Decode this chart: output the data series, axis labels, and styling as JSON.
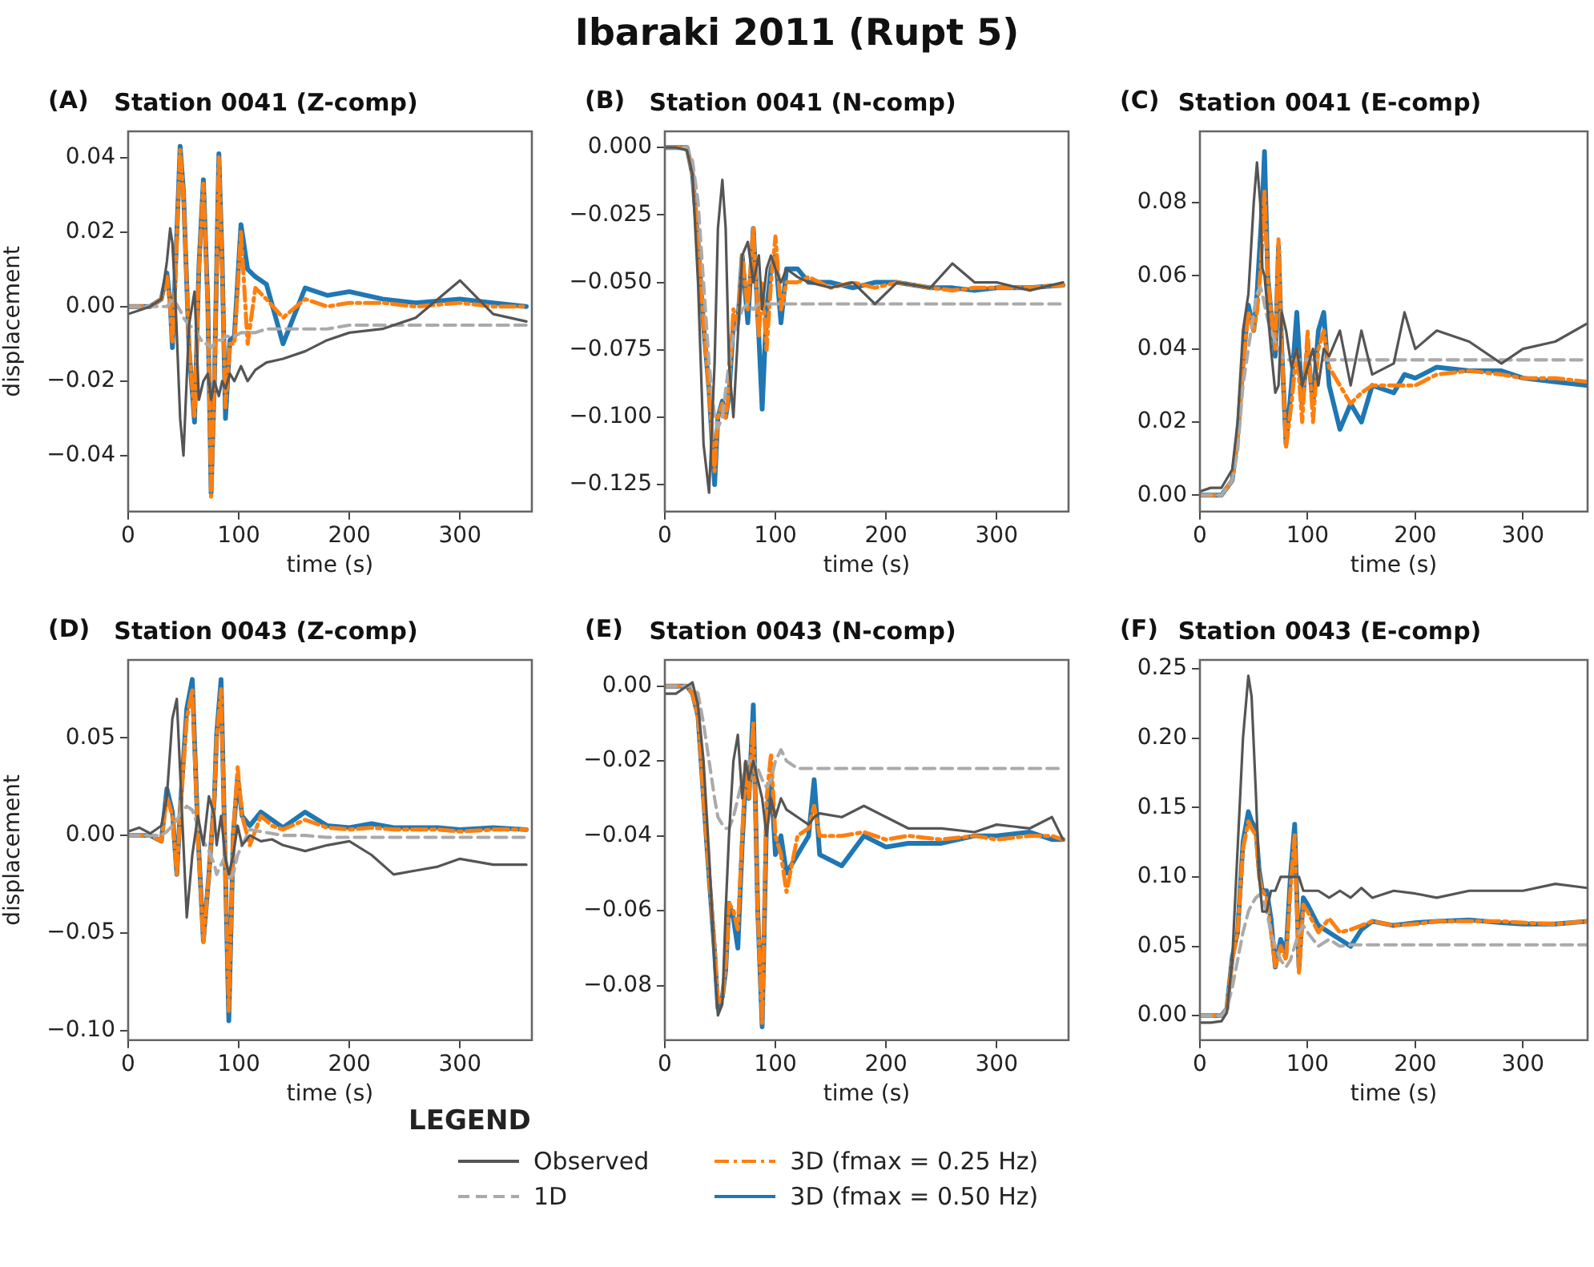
{
  "chart_data": [
    {
      "type": "line",
      "title": "Station 0041 (Z-comp)",
      "xlabel": "time (s)",
      "ylabel": "displacement",
      "annotations": [
        "Ibaraki 2011 (Rupt 5)",
        "(A)"
      ],
      "legend": "bottom",
      "legend_title": "LEGEND",
      "marker": "none",
      "x": [
        0,
        10,
        20,
        30,
        35,
        38,
        40,
        43,
        47,
        50,
        55,
        60,
        64,
        68,
        72,
        75,
        78,
        82,
        85,
        88,
        92,
        96,
        102,
        108,
        115,
        125,
        140,
        160,
        180,
        200,
        230,
        260,
        300,
        330,
        360
      ],
      "xlim": [
        0,
        365
      ],
      "xticks": [
        0,
        100,
        200,
        300
      ],
      "ylim": [
        -0.055,
        0.047
      ],
      "yticks": [
        {
          "value": -0.04,
          "label": "−0.04"
        },
        {
          "value": -0.02,
          "label": "−0.02"
        },
        {
          "value": 0,
          "label": "0.00"
        },
        {
          "value": 0.02,
          "label": "0.02"
        },
        {
          "value": 0.04,
          "label": "0.04"
        }
      ],
      "series": [
        {
          "name": "Observed",
          "color": "#555555",
          "line_style": "solid",
          "values": [
            -0.002,
            -0.001,
            0,
            0.002,
            0.012,
            0.021,
            0.017,
            0,
            -0.03,
            -0.04,
            -0.005,
            0.004,
            -0.025,
            -0.02,
            -0.018,
            -0.025,
            -0.02,
            -0.024,
            -0.02,
            -0.022,
            -0.018,
            -0.02,
            -0.016,
            -0.02,
            -0.017,
            -0.015,
            -0.014,
            -0.012,
            -0.009,
            -0.007,
            -0.006,
            -0.003,
            0.007,
            -0.002,
            -0.004
          ]
        },
        {
          "name": "1D",
          "color": "#aaaaaa",
          "line_style": "dashed",
          "values": [
            0,
            0,
            0,
            0,
            0,
            0.001,
            0.002,
            0.001,
            -0.001,
            -0.003,
            -0.005,
            -0.006,
            -0.008,
            -0.01,
            -0.01,
            -0.011,
            -0.01,
            -0.009,
            -0.009,
            -0.008,
            -0.008,
            -0.008,
            -0.007,
            -0.007,
            -0.007,
            -0.006,
            -0.006,
            -0.006,
            -0.006,
            -0.005,
            -0.005,
            -0.005,
            -0.005,
            -0.005,
            -0.005
          ]
        },
        {
          "name": "3D (fmax = 0.25 Hz)",
          "color": "#ff7f0e",
          "line_style": "dashdot",
          "values": [
            0,
            0,
            0,
            0.002,
            0.008,
            0,
            -0.01,
            0.01,
            0.042,
            0.03,
            -0.01,
            -0.03,
            0.01,
            0.033,
            0,
            -0.051,
            -0.02,
            0.04,
            0.01,
            -0.027,
            -0.01,
            -0.01,
            0.02,
            -0.01,
            0.005,
            0.002,
            -0.003,
            0.002,
            0,
            0.001,
            0.001,
            0,
            0.001,
            0,
            0
          ]
        },
        {
          "name": "3D (fmax = 0.50 Hz)",
          "color": "#1f77b4",
          "line_style": "solid",
          "values": [
            0,
            0,
            0,
            0.002,
            0.009,
            0.001,
            -0.011,
            0.012,
            0.043,
            0.031,
            -0.011,
            -0.031,
            0.011,
            0.034,
            0.001,
            -0.05,
            -0.02,
            0.041,
            0.012,
            -0.03,
            -0.009,
            -0.008,
            0.022,
            0.01,
            0.008,
            0.006,
            -0.01,
            0.005,
            0.003,
            0.004,
            0.002,
            0.001,
            0.002,
            0.001,
            0
          ]
        }
      ]
    },
    {
      "type": "line",
      "title": "Station 0041 (N-comp)",
      "xlabel": "time (s)",
      "annotations": [
        "(B)"
      ],
      "marker": "none",
      "x": [
        0,
        10,
        20,
        25,
        30,
        35,
        40,
        45,
        48,
        52,
        55,
        58,
        62,
        66,
        70,
        75,
        80,
        85,
        88,
        92,
        96,
        100,
        105,
        110,
        120,
        130,
        150,
        170,
        190,
        210,
        240,
        260,
        280,
        300,
        330,
        360
      ],
      "xlim": [
        0,
        365
      ],
      "xticks": [
        0,
        100,
        200,
        300
      ],
      "ylim": [
        -0.135,
        0.006
      ],
      "yticks": [
        {
          "value": -0.125,
          "label": "−0.125"
        },
        {
          "value": -0.1,
          "label": "−0.100"
        },
        {
          "value": -0.075,
          "label": "−0.075"
        },
        {
          "value": -0.05,
          "label": "−0.050"
        },
        {
          "value": -0.025,
          "label": "−0.025"
        },
        {
          "value": 0,
          "label": "0.000"
        }
      ],
      "series": [
        {
          "color": "#555555",
          "line_style": "solid",
          "values": [
            0,
            0,
            -0.001,
            -0.01,
            -0.05,
            -0.11,
            -0.128,
            -0.08,
            -0.03,
            -0.012,
            -0.03,
            -0.08,
            -0.1,
            -0.07,
            -0.04,
            -0.035,
            -0.05,
            -0.04,
            -0.06,
            -0.045,
            -0.04,
            -0.045,
            -0.05,
            -0.045,
            -0.048,
            -0.05,
            -0.052,
            -0.05,
            -0.058,
            -0.05,
            -0.052,
            -0.043,
            -0.05,
            -0.05,
            -0.053,
            -0.05
          ]
        },
        {
          "color": "#aaaaaa",
          "line_style": "dashed",
          "values": [
            0,
            0,
            0,
            -0.005,
            -0.02,
            -0.05,
            -0.08,
            -0.1,
            -0.104,
            -0.1,
            -0.09,
            -0.08,
            -0.07,
            -0.065,
            -0.06,
            -0.058,
            -0.06,
            -0.058,
            -0.058,
            -0.058,
            -0.058,
            -0.058,
            -0.058,
            -0.058,
            -0.058,
            -0.058,
            -0.058,
            -0.058,
            -0.058,
            -0.058,
            -0.058,
            -0.058,
            -0.058,
            -0.058,
            -0.058,
            -0.058
          ]
        },
        {
          "color": "#ff7f0e",
          "line_style": "dashdot",
          "values": [
            0,
            0,
            0,
            -0.01,
            -0.035,
            -0.065,
            -0.09,
            -0.12,
            -0.1,
            -0.095,
            -0.1,
            -0.09,
            -0.06,
            -0.065,
            -0.04,
            -0.06,
            -0.03,
            -0.07,
            -0.05,
            -0.075,
            -0.05,
            -0.033,
            -0.06,
            -0.05,
            -0.05,
            -0.048,
            -0.052,
            -0.05,
            -0.052,
            -0.05,
            -0.052,
            -0.053,
            -0.052,
            -0.052,
            -0.052,
            -0.051
          ]
        },
        {
          "color": "#1f77b4",
          "line_style": "solid",
          "values": [
            0,
            0,
            0,
            -0.01,
            -0.035,
            -0.066,
            -0.09,
            -0.125,
            -0.1,
            -0.094,
            -0.1,
            -0.092,
            -0.065,
            -0.065,
            -0.04,
            -0.065,
            -0.03,
            -0.07,
            -0.097,
            -0.06,
            -0.045,
            -0.04,
            -0.065,
            -0.045,
            -0.045,
            -0.05,
            -0.05,
            -0.052,
            -0.05,
            -0.05,
            -0.052,
            -0.052,
            -0.053,
            -0.052,
            -0.052,
            -0.051
          ]
        }
      ]
    },
    {
      "type": "line",
      "title": "Station 0041 (E-comp)",
      "xlabel": "time (s)",
      "annotations": [
        "(C)"
      ],
      "marker": "none",
      "x": [
        0,
        10,
        20,
        30,
        35,
        40,
        45,
        50,
        53,
        56,
        58,
        60,
        63,
        66,
        70,
        73,
        76,
        80,
        85,
        90,
        95,
        100,
        105,
        110,
        115,
        120,
        130,
        140,
        150,
        160,
        180,
        190,
        200,
        220,
        250,
        280,
        300,
        330,
        360
      ],
      "xlim": [
        0,
        360
      ],
      "xticks": [
        0,
        100,
        200,
        300
      ],
      "ylim": [
        -0.0045,
        0.0995
      ],
      "yticks": [
        {
          "value": 0,
          "label": "0.00"
        },
        {
          "value": 0.02,
          "label": "0.02"
        },
        {
          "value": 0.04,
          "label": "0.04"
        },
        {
          "value": 0.06,
          "label": "0.06"
        },
        {
          "value": 0.08,
          "label": "0.08"
        }
      ],
      "series": [
        {
          "color": "#555555",
          "line_style": "solid",
          "values": [
            0.001,
            0.002,
            0.002,
            0.007,
            0.02,
            0.045,
            0.055,
            0.08,
            0.091,
            0.08,
            0.062,
            0.06,
            0.05,
            0.04,
            0.028,
            0.03,
            0.05,
            0.045,
            0.035,
            0.04,
            0.03,
            0.035,
            0.04,
            0.03,
            0.04,
            0.038,
            0.045,
            0.03,
            0.045,
            0.033,
            0.036,
            0.05,
            0.04,
            0.045,
            0.042,
            0.036,
            0.04,
            0.042,
            0.047
          ]
        },
        {
          "color": "#aaaaaa",
          "line_style": "dashed",
          "values": [
            0,
            0,
            0,
            0.004,
            0.012,
            0.03,
            0.04,
            0.05,
            0.055,
            0.057,
            0.055,
            0.052,
            0.048,
            0.045,
            0.042,
            0.04,
            0.038,
            0.037,
            0.037,
            0.037,
            0.037,
            0.037,
            0.037,
            0.037,
            0.037,
            0.037,
            0.037,
            0.037,
            0.037,
            0.037,
            0.037,
            0.037,
            0.037,
            0.037,
            0.037,
            0.037,
            0.037,
            0.037,
            0.037
          ]
        },
        {
          "color": "#ff7f0e",
          "line_style": "dashdot",
          "values": [
            0,
            0,
            0,
            0.004,
            0.015,
            0.035,
            0.05,
            0.045,
            0.05,
            0.06,
            0.07,
            0.083,
            0.06,
            0.05,
            0.04,
            0.07,
            0.04,
            0.013,
            0.025,
            0.04,
            0.02,
            0.045,
            0.02,
            0.04,
            0.045,
            0.035,
            0.03,
            0.025,
            0.028,
            0.03,
            0.03,
            0.03,
            0.03,
            0.033,
            0.034,
            0.033,
            0.032,
            0.032,
            0.031
          ]
        },
        {
          "color": "#1f77b4",
          "line_style": "solid",
          "values": [
            0,
            0,
            0,
            0.004,
            0.016,
            0.036,
            0.052,
            0.045,
            0.055,
            0.07,
            0.08,
            0.094,
            0.06,
            0.05,
            0.038,
            0.068,
            0.04,
            0.014,
            0.03,
            0.05,
            0.025,
            0.04,
            0.025,
            0.045,
            0.05,
            0.03,
            0.018,
            0.025,
            0.02,
            0.03,
            0.028,
            0.033,
            0.032,
            0.035,
            0.034,
            0.034,
            0.032,
            0.031,
            0.03
          ]
        }
      ]
    },
    {
      "type": "line",
      "title": "Station 0043 (Z-comp)",
      "xlabel": "time (s)",
      "ylabel": "displacement",
      "annotations": [
        "(D)"
      ],
      "marker": "none",
      "x": [
        0,
        10,
        20,
        30,
        35,
        40,
        44,
        48,
        53,
        58,
        63,
        68,
        73,
        78,
        80,
        84,
        88,
        91,
        95,
        99,
        103,
        110,
        120,
        130,
        140,
        160,
        180,
        200,
        220,
        240,
        260,
        280,
        300,
        330,
        360
      ],
      "xlim": [
        0,
        365
      ],
      "xticks": [
        0,
        100,
        200,
        300
      ],
      "ylim": [
        -0.105,
        0.09
      ],
      "yticks": [
        {
          "value": -0.1,
          "label": "−0.10"
        },
        {
          "value": -0.05,
          "label": "−0.05"
        },
        {
          "value": 0,
          "label": "0.00"
        },
        {
          "value": 0.05,
          "label": "0.05"
        }
      ],
      "series": [
        {
          "color": "#555555",
          "line_style": "solid",
          "values": [
            0.002,
            0.004,
            0.001,
            0.005,
            0.02,
            0.06,
            0.07,
            0.02,
            -0.042,
            -0.01,
            0.01,
            -0.005,
            0.02,
            0.01,
            -0.005,
            0.01,
            -0.012,
            -0.02,
            -0.01,
            0.005,
            -0.005,
            0,
            -0.003,
            -0.002,
            -0.005,
            -0.008,
            -0.005,
            -0.003,
            -0.01,
            -0.02,
            -0.018,
            -0.016,
            -0.012,
            -0.015,
            -0.015
          ]
        },
        {
          "color": "#aaaaaa",
          "line_style": "dashed",
          "values": [
            0,
            0,
            0,
            0,
            0.002,
            0.005,
            0.008,
            0.012,
            0.015,
            0.013,
            0.005,
            -0.003,
            -0.008,
            -0.015,
            -0.02,
            -0.015,
            -0.01,
            -0.022,
            -0.02,
            -0.01,
            -0.005,
            0.003,
            0.002,
            0.001,
            0,
            0,
            -0.001,
            -0.001,
            -0.001,
            -0.001,
            -0.001,
            -0.001,
            -0.001,
            -0.001,
            -0.001
          ]
        },
        {
          "color": "#ff7f0e",
          "line_style": "dashdot",
          "values": [
            0,
            0,
            0,
            -0.003,
            0.02,
            0.01,
            -0.02,
            0.02,
            0.06,
            0.075,
            0,
            -0.055,
            -0.02,
            0.02,
            0.05,
            0.075,
            -0.02,
            -0.09,
            0,
            0.035,
            0.01,
            -0.005,
            0.01,
            0.005,
            0.003,
            0.008,
            0.004,
            0.003,
            0.004,
            0.003,
            0.003,
            0.003,
            0.002,
            0.003,
            0.003
          ]
        },
        {
          "color": "#1f77b4",
          "line_style": "solid",
          "values": [
            0,
            0,
            0,
            -0.003,
            0.024,
            0.012,
            -0.02,
            0.022,
            0.065,
            0.08,
            0.002,
            -0.054,
            -0.02,
            0.02,
            0.052,
            0.08,
            -0.02,
            -0.095,
            0,
            0.03,
            0.01,
            0.005,
            0.012,
            0.008,
            0.004,
            0.012,
            0.005,
            0.004,
            0.006,
            0.004,
            0.004,
            0.004,
            0.003,
            0.004,
            0.003
          ]
        }
      ]
    },
    {
      "type": "line",
      "title": "Station 0043 (N-comp)",
      "xlabel": "time (s)",
      "annotations": [
        "(E)"
      ],
      "marker": "none",
      "x": [
        0,
        10,
        20,
        25,
        30,
        35,
        40,
        45,
        48,
        52,
        55,
        58,
        62,
        66,
        70,
        73,
        76,
        80,
        84,
        88,
        92,
        96,
        100,
        105,
        110,
        120,
        130,
        135,
        140,
        160,
        180,
        200,
        220,
        250,
        280,
        300,
        330,
        350,
        360
      ],
      "xlim": [
        0,
        365
      ],
      "xticks": [
        0,
        100,
        200,
        300
      ],
      "ylim": [
        -0.0946,
        0.007
      ],
      "yticks": [
        {
          "value": -0.08,
          "label": "−0.08"
        },
        {
          "value": -0.06,
          "label": "−0.06"
        },
        {
          "value": -0.04,
          "label": "−0.04"
        },
        {
          "value": -0.02,
          "label": "−0.02"
        },
        {
          "value": 0,
          "label": "0.00"
        }
      ],
      "series": [
        {
          "color": "#555555",
          "line_style": "solid",
          "values": [
            -0.002,
            -0.002,
            0,
            0.001,
            -0.005,
            -0.02,
            -0.045,
            -0.075,
            -0.088,
            -0.085,
            -0.06,
            -0.04,
            -0.02,
            -0.013,
            -0.03,
            -0.02,
            -0.025,
            -0.02,
            -0.025,
            -0.03,
            -0.04,
            -0.03,
            -0.035,
            -0.03,
            -0.033,
            -0.035,
            -0.037,
            -0.035,
            -0.034,
            -0.035,
            -0.032,
            -0.035,
            -0.038,
            -0.038,
            -0.039,
            -0.037,
            -0.038,
            -0.035,
            -0.041
          ]
        },
        {
          "color": "#aaaaaa",
          "line_style": "dashed",
          "values": [
            0,
            0,
            0,
            0,
            -0.002,
            -0.01,
            -0.02,
            -0.03,
            -0.035,
            -0.037,
            -0.038,
            -0.038,
            -0.035,
            -0.03,
            -0.025,
            -0.022,
            -0.02,
            -0.02,
            -0.022,
            -0.025,
            -0.027,
            -0.025,
            -0.02,
            -0.017,
            -0.02,
            -0.022,
            -0.022,
            -0.022,
            -0.022,
            -0.022,
            -0.022,
            -0.022,
            -0.022,
            -0.022,
            -0.022,
            -0.022,
            -0.022,
            -0.022,
            -0.022
          ]
        },
        {
          "color": "#ff7f0e",
          "line_style": "dashdot",
          "values": [
            0,
            0,
            0,
            -0.002,
            -0.008,
            -0.03,
            -0.05,
            -0.07,
            -0.085,
            -0.083,
            -0.075,
            -0.058,
            -0.06,
            -0.065,
            -0.04,
            -0.02,
            -0.03,
            -0.01,
            -0.06,
            -0.09,
            -0.03,
            -0.018,
            -0.04,
            -0.045,
            -0.055,
            -0.04,
            -0.038,
            -0.032,
            -0.04,
            -0.04,
            -0.039,
            -0.041,
            -0.04,
            -0.041,
            -0.04,
            -0.041,
            -0.04,
            -0.04,
            -0.041
          ]
        },
        {
          "color": "#1f77b4",
          "line_style": "solid",
          "values": [
            0,
            0,
            0,
            -0.002,
            -0.008,
            -0.03,
            -0.051,
            -0.071,
            -0.086,
            -0.083,
            -0.076,
            -0.058,
            -0.062,
            -0.07,
            -0.042,
            -0.025,
            -0.03,
            -0.005,
            -0.06,
            -0.091,
            -0.035,
            -0.025,
            -0.045,
            -0.04,
            -0.05,
            -0.045,
            -0.04,
            -0.025,
            -0.045,
            -0.048,
            -0.04,
            -0.043,
            -0.042,
            -0.042,
            -0.04,
            -0.04,
            -0.039,
            -0.041,
            -0.041
          ]
        }
      ]
    },
    {
      "type": "line",
      "title": "Station 0043 (E-comp)",
      "xlabel": "time (s)",
      "annotations": [
        "(F)"
      ],
      "marker": "none",
      "x": [
        0,
        10,
        20,
        25,
        30,
        35,
        40,
        45,
        48,
        52,
        55,
        58,
        62,
        66,
        70,
        75,
        80,
        84,
        88,
        92,
        96,
        100,
        110,
        120,
        130,
        140,
        150,
        160,
        180,
        200,
        220,
        250,
        280,
        300,
        330,
        360
      ],
      "xlim": [
        0,
        360
      ],
      "xticks": [
        0,
        100,
        200,
        300
      ],
      "ylim": [
        -0.0177,
        0.2564
      ],
      "yticks": [
        {
          "value": 0,
          "label": "0.00"
        },
        {
          "value": 0.05,
          "label": "0.05"
        },
        {
          "value": 0.1,
          "label": "0.10"
        },
        {
          "value": 0.15,
          "label": "0.15"
        },
        {
          "value": 0.2,
          "label": "0.20"
        },
        {
          "value": 0.25,
          "label": "0.25"
        }
      ],
      "series": [
        {
          "color": "#555555",
          "line_style": "solid",
          "values": [
            -0.005,
            -0.005,
            -0.004,
            0.002,
            0.04,
            0.12,
            0.2,
            0.245,
            0.23,
            0.16,
            0.1,
            0.075,
            0.075,
            0.09,
            0.09,
            0.1,
            0.1,
            0.1,
            0.1,
            0.1,
            0.09,
            0.09,
            0.09,
            0.085,
            0.09,
            0.085,
            0.092,
            0.085,
            0.09,
            0.088,
            0.085,
            0.09,
            0.09,
            0.09,
            0.095,
            0.092
          ]
        },
        {
          "color": "#aaaaaa",
          "line_style": "dashed",
          "values": [
            0,
            0,
            0,
            0.005,
            0.02,
            0.04,
            0.06,
            0.075,
            0.08,
            0.085,
            0.087,
            0.085,
            0.075,
            0.06,
            0.05,
            0.04,
            0.035,
            0.04,
            0.05,
            0.06,
            0.065,
            0.06,
            0.05,
            0.055,
            0.05,
            0.051,
            0.051,
            0.051,
            0.051,
            0.051,
            0.051,
            0.051,
            0.051,
            0.051,
            0.051,
            0.051
          ]
        },
        {
          "color": "#ff7f0e",
          "line_style": "dashdot",
          "values": [
            0,
            0,
            0,
            0.005,
            0.04,
            0.06,
            0.12,
            0.14,
            0.135,
            0.13,
            0.1,
            0.09,
            0.085,
            0.06,
            0.035,
            0.05,
            0.04,
            0.09,
            0.13,
            0.03,
            0.08,
            0.075,
            0.06,
            0.07,
            0.06,
            0.062,
            0.065,
            0.068,
            0.065,
            0.066,
            0.068,
            0.068,
            0.068,
            0.067,
            0.066,
            0.068
          ]
        },
        {
          "color": "#1f77b4",
          "line_style": "solid",
          "values": [
            0,
            0,
            0,
            0.005,
            0.042,
            0.06,
            0.125,
            0.147,
            0.14,
            0.135,
            0.105,
            0.09,
            0.09,
            0.07,
            0.035,
            0.055,
            0.045,
            0.1,
            0.138,
            0.035,
            0.085,
            0.08,
            0.065,
            0.06,
            0.055,
            0.05,
            0.062,
            0.068,
            0.065,
            0.067,
            0.068,
            0.069,
            0.067,
            0.066,
            0.066,
            0.068
          ]
        }
      ]
    }
  ]
}
